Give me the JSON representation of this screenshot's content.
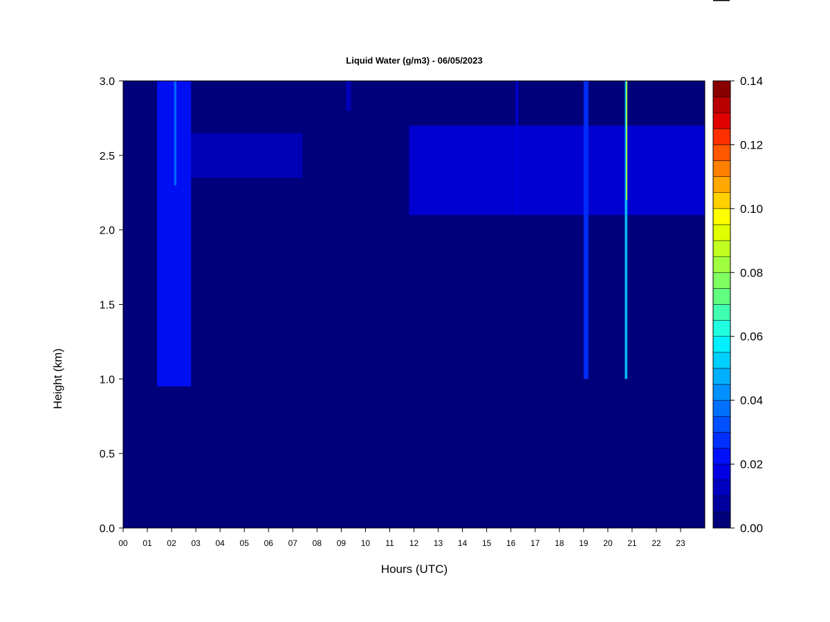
{
  "chart_data": {
    "type": "heatmap",
    "title": "Liquid Water (g/m3) - 06/05/2023",
    "xlabel": "Hours (UTC)",
    "ylabel": "Height (km)",
    "xlim": [
      0,
      24
    ],
    "ylim": [
      0.0,
      3.0
    ],
    "x_ticks": [
      "00",
      "01",
      "02",
      "03",
      "04",
      "05",
      "06",
      "07",
      "08",
      "09",
      "10",
      "11",
      "12",
      "13",
      "14",
      "15",
      "16",
      "17",
      "18",
      "19",
      "20",
      "21",
      "22",
      "23"
    ],
    "y_ticks": [
      "0.0",
      "0.5",
      "1.0",
      "1.5",
      "2.0",
      "2.5",
      "3.0"
    ],
    "colorbar": {
      "range": [
        0.0,
        0.14
      ],
      "levels": 28,
      "ticks": [
        "0.00",
        "0.02",
        "0.04",
        "0.06",
        "0.08",
        "0.10",
        "0.12",
        "0.14"
      ],
      "colors": [
        "#00007a",
        "#00009e",
        "#0000c0",
        "#0000e0",
        "#0010ff",
        "#0030ff",
        "#0050ff",
        "#0070ff",
        "#0090ff",
        "#00b0ff",
        "#00d0ff",
        "#00f0ff",
        "#20ffe0",
        "#40ffb0",
        "#60ff80",
        "#80ff60",
        "#a0ff40",
        "#c0ff20",
        "#e0ff00",
        "#ffff00",
        "#ffd000",
        "#ffa800",
        "#ff8000",
        "#ff5800",
        "#ff3000",
        "#e00000",
        "#b80000",
        "#8a0000"
      ]
    },
    "background_value": 0.003,
    "features": [
      {
        "type": "cloud_layer",
        "x_range": [
          2.8,
          7.4
        ],
        "y_range": [
          2.35,
          2.65
        ],
        "value": 0.014
      },
      {
        "type": "cloud_layer",
        "x_range": [
          11.8,
          24.0
        ],
        "y_range": [
          2.1,
          2.7
        ],
        "value": 0.016
      },
      {
        "type": "column",
        "x_range": [
          1.4,
          2.8
        ],
        "y_range": [
          0.95,
          3.0
        ],
        "value": 0.02
      },
      {
        "type": "column",
        "x_range": [
          2.1,
          2.2
        ],
        "y_range": [
          2.3,
          3.0
        ],
        "value": 0.035
      },
      {
        "type": "column",
        "x_range": [
          19.0,
          19.2
        ],
        "y_range": [
          1.0,
          3.0
        ],
        "value": 0.03
      },
      {
        "type": "column",
        "x_range": [
          20.7,
          20.8
        ],
        "y_range": [
          1.0,
          3.0
        ],
        "value": 0.05
      },
      {
        "type": "column",
        "x_range": [
          20.75,
          20.8
        ],
        "y_range": [
          2.2,
          3.0
        ],
        "value": 0.085
      },
      {
        "type": "column",
        "x_range": [
          16.2,
          16.3
        ],
        "y_range": [
          2.1,
          3.0
        ],
        "value": 0.018
      },
      {
        "type": "column",
        "x_range": [
          9.2,
          9.4
        ],
        "y_range": [
          2.8,
          3.0
        ],
        "value": 0.015
      }
    ]
  }
}
